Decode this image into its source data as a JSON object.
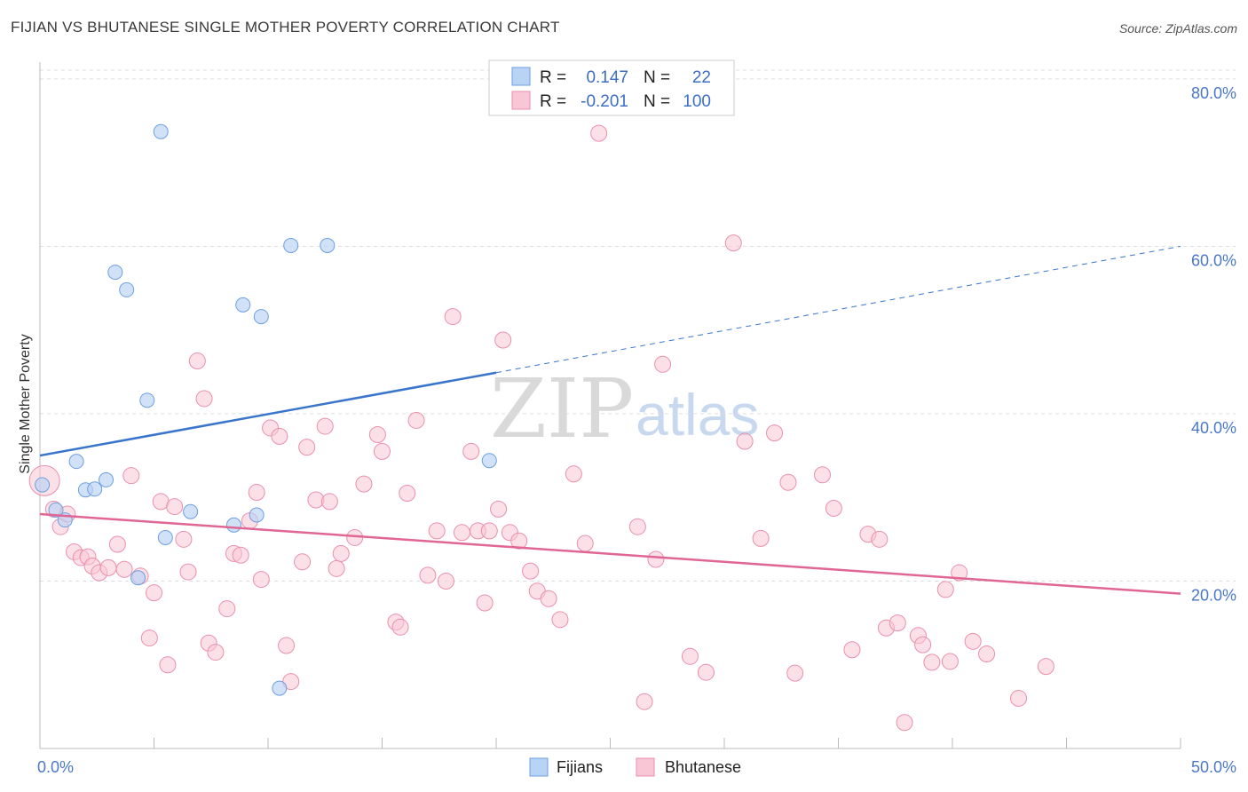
{
  "title": "FIJIAN VS BHUTANESE SINGLE MOTHER POVERTY CORRELATION CHART",
  "source": "Source: ZipAtlas.com",
  "watermark": {
    "zip": "ZIP",
    "atlas": "atlas"
  },
  "colors": {
    "fijian_fill": "#b9d3f5",
    "fijian_stroke": "#6d9fe0",
    "fijian_line": "#3a75cc",
    "bhutanese_fill": "#f9c6d6",
    "bhutanese_stroke": "#ea8fae",
    "bhutanese_line": "#e06693",
    "grid": "#dddddd",
    "tick_text": "#4a77c9"
  },
  "legend": {
    "rows": [
      {
        "r_label": "R =",
        "r_value": "0.147",
        "n_label": "N =",
        "n_value": "22"
      },
      {
        "r_label": "R =",
        "r_value": "-0.201",
        "n_label": "N =",
        "n_value": "100"
      }
    ]
  },
  "chart_data": {
    "type": "scatter",
    "title": "FIJIAN VS BHUTANESE SINGLE MOTHER POVERTY CORRELATION CHART",
    "xlabel": "",
    "ylabel": "Single Mother Poverty",
    "xlim": [
      0,
      50
    ],
    "ylim": [
      0,
      82
    ],
    "x_tick_labels": [
      "0.0%",
      "50.0%"
    ],
    "y_ticks": [
      20,
      40,
      60,
      80
    ],
    "y_tick_labels": [
      "20.0%",
      "40.0%",
      "60.0%",
      "80.0%"
    ],
    "legend_position": "bottom",
    "series": [
      {
        "name": "Fijians",
        "R": 0.147,
        "N": 22,
        "trend": {
          "x0": 0,
          "y0": 35.0,
          "x1": 20,
          "y1": 44.9,
          "dashed_to_x": 50,
          "dashed_to_y": 60.0
        },
        "points": [
          [
            0.1,
            31.5
          ],
          [
            0.7,
            28.5
          ],
          [
            1.1,
            27.3
          ],
          [
            1.6,
            34.3
          ],
          [
            2.0,
            30.9
          ],
          [
            2.4,
            31.0
          ],
          [
            2.9,
            32.1
          ],
          [
            3.3,
            56.9
          ],
          [
            3.8,
            54.8
          ],
          [
            4.3,
            20.4
          ],
          [
            4.7,
            41.6
          ],
          [
            5.3,
            73.7
          ],
          [
            5.5,
            25.2
          ],
          [
            6.6,
            28.3
          ],
          [
            8.5,
            26.7
          ],
          [
            8.9,
            53.0
          ],
          [
            9.5,
            27.9
          ],
          [
            9.7,
            51.6
          ],
          [
            10.5,
            7.2
          ],
          [
            11.0,
            60.1
          ],
          [
            12.6,
            60.1
          ],
          [
            19.7,
            34.4
          ]
        ]
      },
      {
        "name": "Bhutanese",
        "R": -0.201,
        "N": 100,
        "trend": {
          "x0": 0,
          "y0": 28.0,
          "x1": 50,
          "y1": 18.5
        },
        "points": [
          [
            0.2,
            32.0
          ],
          [
            0.6,
            28.6
          ],
          [
            0.9,
            26.5
          ],
          [
            1.2,
            28.0
          ],
          [
            1.5,
            23.5
          ],
          [
            1.8,
            22.8
          ],
          [
            2.1,
            22.9
          ],
          [
            2.3,
            21.8
          ],
          [
            2.6,
            21.0
          ],
          [
            3.0,
            21.6
          ],
          [
            3.4,
            24.4
          ],
          [
            3.7,
            21.4
          ],
          [
            4.0,
            32.6
          ],
          [
            4.4,
            20.6
          ],
          [
            4.8,
            13.2
          ],
          [
            5.0,
            18.6
          ],
          [
            5.3,
            29.5
          ],
          [
            5.6,
            10.0
          ],
          [
            5.9,
            28.9
          ],
          [
            6.3,
            25.0
          ],
          [
            6.5,
            21.1
          ],
          [
            6.9,
            46.3
          ],
          [
            7.2,
            41.8
          ],
          [
            7.4,
            12.6
          ],
          [
            7.7,
            11.5
          ],
          [
            8.2,
            16.7
          ],
          [
            8.5,
            23.3
          ],
          [
            8.8,
            23.1
          ],
          [
            9.2,
            27.2
          ],
          [
            9.5,
            30.6
          ],
          [
            9.7,
            20.2
          ],
          [
            10.1,
            38.3
          ],
          [
            10.5,
            37.3
          ],
          [
            10.8,
            12.3
          ],
          [
            11.0,
            8.0
          ],
          [
            11.5,
            22.3
          ],
          [
            11.7,
            36.0
          ],
          [
            12.1,
            29.7
          ],
          [
            12.5,
            38.5
          ],
          [
            12.7,
            29.5
          ],
          [
            13.0,
            21.5
          ],
          [
            13.2,
            23.3
          ],
          [
            13.8,
            25.2
          ],
          [
            14.2,
            31.6
          ],
          [
            14.8,
            37.5
          ],
          [
            15.0,
            35.5
          ],
          [
            15.6,
            15.1
          ],
          [
            15.8,
            14.5
          ],
          [
            16.1,
            30.5
          ],
          [
            16.5,
            39.2
          ],
          [
            17.0,
            20.7
          ],
          [
            17.4,
            26.0
          ],
          [
            17.8,
            20.0
          ],
          [
            18.1,
            51.6
          ],
          [
            18.5,
            25.8
          ],
          [
            18.9,
            35.5
          ],
          [
            19.2,
            26.0
          ],
          [
            19.5,
            17.4
          ],
          [
            19.7,
            26.0
          ],
          [
            20.1,
            28.6
          ],
          [
            20.3,
            48.8
          ],
          [
            20.6,
            25.8
          ],
          [
            21.0,
            24.8
          ],
          [
            21.5,
            21.2
          ],
          [
            21.8,
            18.8
          ],
          [
            22.3,
            17.9
          ],
          [
            22.8,
            15.4
          ],
          [
            23.4,
            32.8
          ],
          [
            23.9,
            24.5
          ],
          [
            24.5,
            73.5
          ],
          [
            26.2,
            26.5
          ],
          [
            26.5,
            5.6
          ],
          [
            27.0,
            22.6
          ],
          [
            27.3,
            45.9
          ],
          [
            28.5,
            11.0
          ],
          [
            29.2,
            9.1
          ],
          [
            30.4,
            60.4
          ],
          [
            30.9,
            36.7
          ],
          [
            31.6,
            25.1
          ],
          [
            32.2,
            37.7
          ],
          [
            32.8,
            31.8
          ],
          [
            33.1,
            9.0
          ],
          [
            34.3,
            32.7
          ],
          [
            34.8,
            28.7
          ],
          [
            35.6,
            11.8
          ],
          [
            36.3,
            25.6
          ],
          [
            36.8,
            25.0
          ],
          [
            37.1,
            14.4
          ],
          [
            37.6,
            15.0
          ],
          [
            37.9,
            3.1
          ],
          [
            38.5,
            13.5
          ],
          [
            38.7,
            12.4
          ],
          [
            39.1,
            10.3
          ],
          [
            39.7,
            19.0
          ],
          [
            39.9,
            10.4
          ],
          [
            40.3,
            21.0
          ],
          [
            40.9,
            12.8
          ],
          [
            41.5,
            11.3
          ],
          [
            42.9,
            6.0
          ],
          [
            44.1,
            9.8
          ]
        ]
      }
    ]
  }
}
